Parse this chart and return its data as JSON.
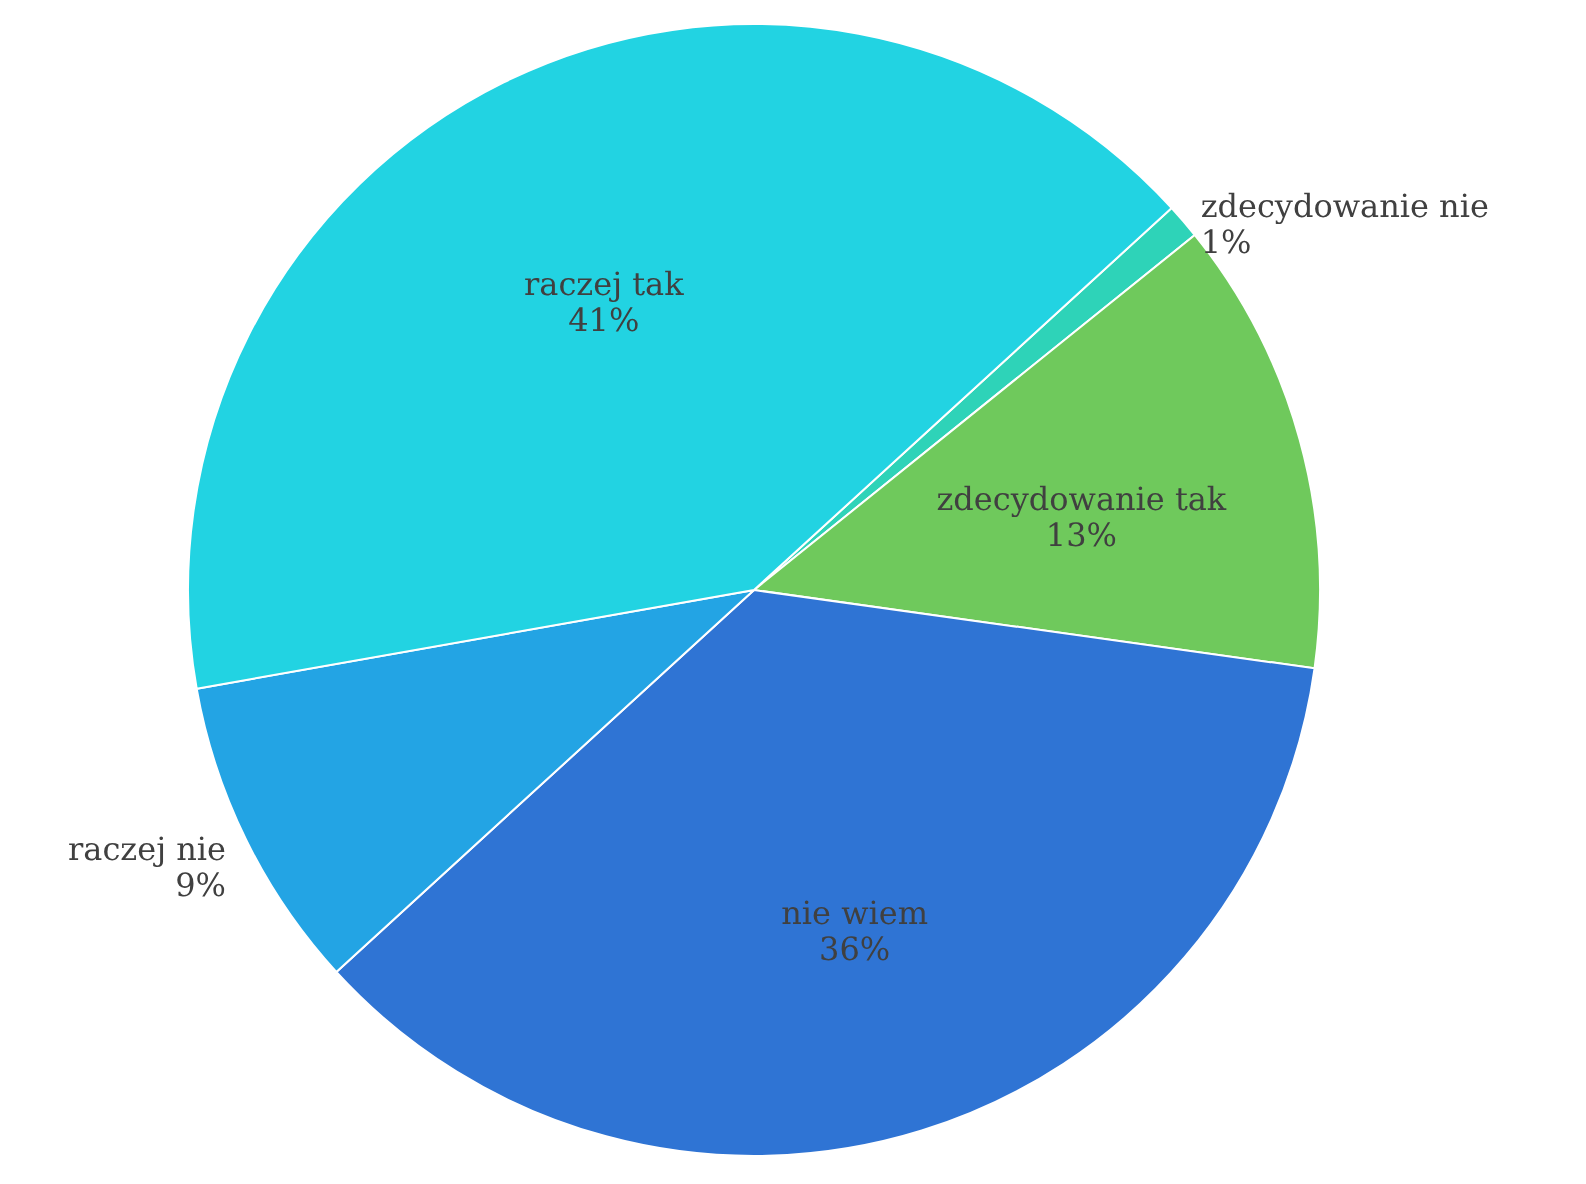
{
  "chart_data": {
    "type": "pie",
    "categories": [
      "zdecydowanie nie",
      "zdecydowanie tak",
      "nie wiem",
      "raczej nie",
      "raczej tak"
    ],
    "values": [
      1,
      13,
      36,
      9,
      41
    ],
    "value_labels": [
      "1%",
      "13%",
      "36%",
      "9%",
      "41%"
    ],
    "colors": [
      "#2ed3b8",
      "#6fc95c",
      "#2f74d4",
      "#23a4e4",
      "#22d3e2"
    ]
  }
}
